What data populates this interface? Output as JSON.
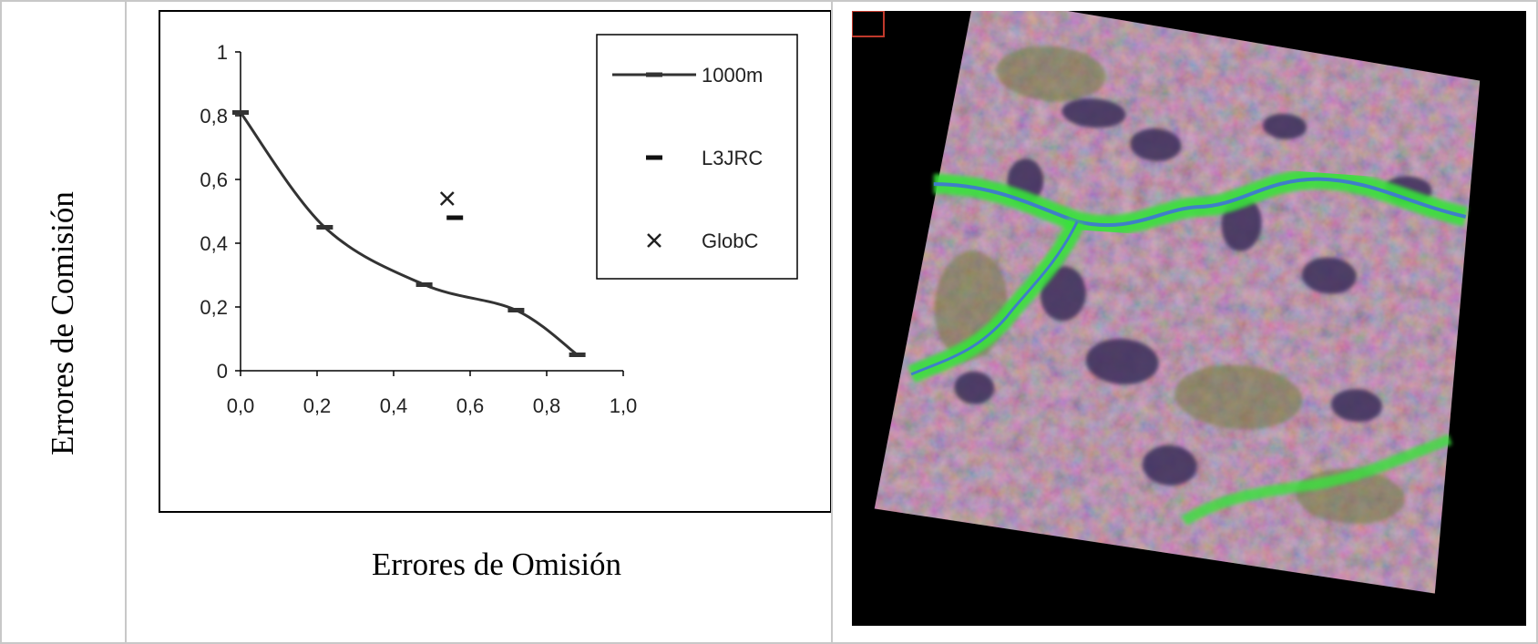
{
  "layout_text": {
    "ylabel": "Errores de Comisión",
    "xlabel": "Errores de Omisión"
  },
  "chart_data": {
    "type": "line",
    "title": "",
    "xlabel": "Errores de Omisión",
    "ylabel": "Errores de Comisión",
    "xlim": [
      0.0,
      1.0
    ],
    "ylim": [
      0,
      1
    ],
    "x_ticks": [
      "0,0",
      "0,2",
      "0,4",
      "0,6",
      "0,8",
      "1,0"
    ],
    "y_ticks": [
      "0",
      "0,2",
      "0,4",
      "0,6",
      "0,8",
      "1"
    ],
    "grid": false,
    "legend_position": "top-right",
    "series": [
      {
        "name": "1000m",
        "marker": "dash",
        "line": true,
        "color": "#333333",
        "points": [
          [
            0.0,
            0.81
          ],
          [
            0.22,
            0.45
          ],
          [
            0.48,
            0.27
          ],
          [
            0.72,
            0.19
          ],
          [
            0.88,
            0.05
          ]
        ]
      },
      {
        "name": "L3JRC",
        "marker": "dash",
        "line": false,
        "color": "#111111",
        "points": [
          [
            0.56,
            0.48
          ]
        ]
      },
      {
        "name": "GlobC",
        "marker": "x",
        "line": false,
        "color": "#222222",
        "points": [
          [
            0.54,
            0.54
          ]
        ]
      }
    ]
  },
  "image": {
    "description": "satellite-composite",
    "colors": {
      "background": "#000000",
      "terrain": "#b07b9a",
      "vegetation": "#39e23a",
      "water": "#3f7fc8",
      "dark-patches": "#3a2f5a",
      "frame-marker": "#c0392b"
    }
  }
}
